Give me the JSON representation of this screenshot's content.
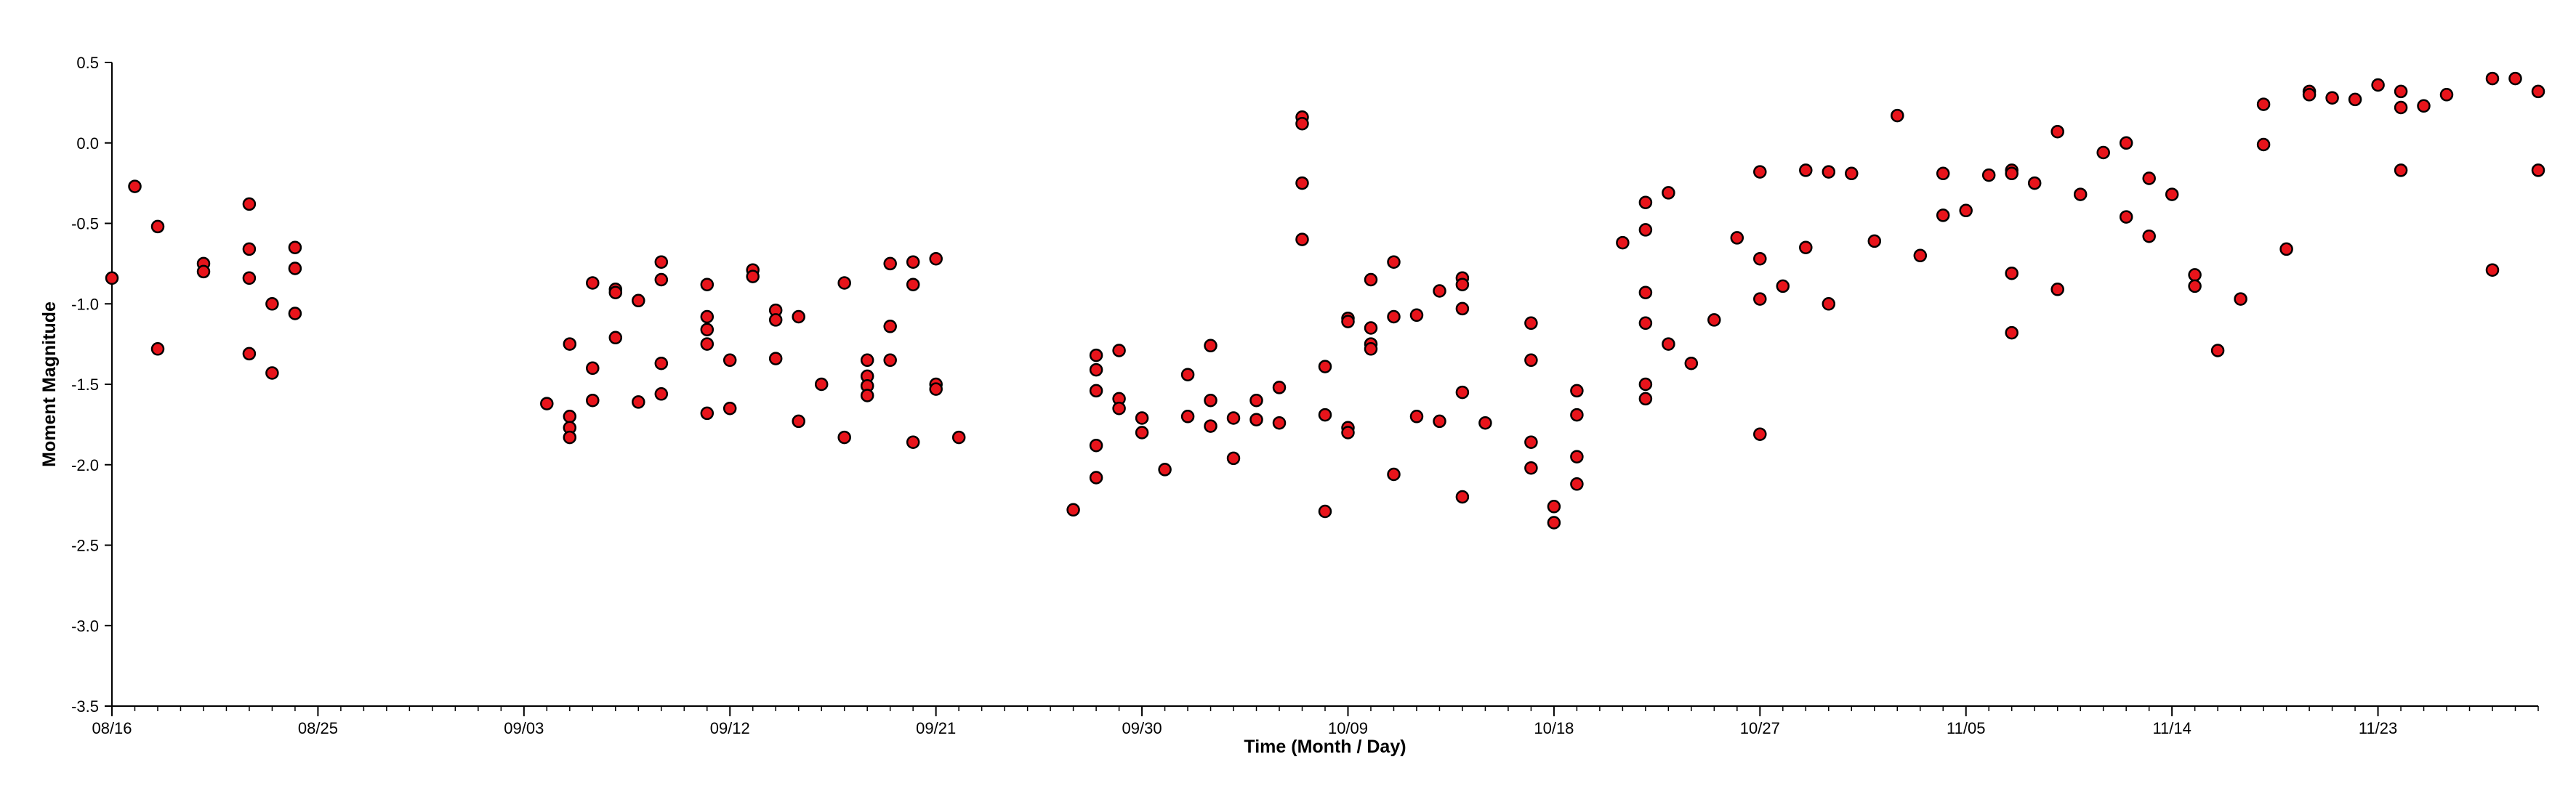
{
  "chart_data": {
    "type": "scatter",
    "title": "",
    "xlabel": "Time (Month / Day)",
    "ylabel": "Moment Magnitude",
    "xlim": [
      "2023-08-16",
      "2023-11-30"
    ],
    "ylim": [
      -3.5,
      0.5
    ],
    "yticks": [
      0.5,
      0.0,
      -0.5,
      -1.0,
      -1.5,
      -2.0,
      -2.5,
      -3.0,
      -3.5
    ],
    "ytick_labels": [
      "0.5",
      "0.0",
      "-0.5",
      "-1.0",
      "-1.5",
      "-2.0",
      "-2.5",
      "-3.0",
      "-3.5"
    ],
    "xticks": [
      "2023-08-16",
      "2023-08-25",
      "2023-09-03",
      "2023-09-12",
      "2023-09-21",
      "2023-09-30",
      "2023-10-09",
      "2023-10-18",
      "2023-10-27",
      "2023-11-05",
      "2023-11-14",
      "2023-11-23"
    ],
    "xtick_labels": [
      "08/16",
      "08/25",
      "09/03",
      "09/12",
      "09/21",
      "09/30",
      "10/09",
      "10/18",
      "10/27",
      "11/05",
      "11/14",
      "11/23"
    ],
    "grid": false,
    "legend": "none",
    "marker_color": "#e8141b",
    "marker_edge_color": "#000000",
    "series": [
      {
        "points": [
          [
            "2023-08-16",
            -0.84
          ],
          [
            "2023-08-17",
            -0.27
          ],
          [
            "2023-08-18",
            -0.52
          ],
          [
            "2023-08-18",
            -1.28
          ],
          [
            "2023-08-20",
            -0.75
          ],
          [
            "2023-08-20",
            -0.8
          ],
          [
            "2023-08-22",
            -0.38
          ],
          [
            "2023-08-22",
            -0.66
          ],
          [
            "2023-08-22",
            -0.84
          ],
          [
            "2023-08-22",
            -1.31
          ],
          [
            "2023-08-23",
            -1.0
          ],
          [
            "2023-08-23",
            -1.43
          ],
          [
            "2023-08-24",
            -0.65
          ],
          [
            "2023-08-24",
            -0.78
          ],
          [
            "2023-08-24",
            -1.06
          ],
          [
            "2023-09-04",
            -1.62
          ],
          [
            "2023-09-05",
            -1.25
          ],
          [
            "2023-09-05",
            -1.7
          ],
          [
            "2023-09-05",
            -1.77
          ],
          [
            "2023-09-05",
            -1.83
          ],
          [
            "2023-09-06",
            -0.87
          ],
          [
            "2023-09-06",
            -1.4
          ],
          [
            "2023-09-06",
            -1.6
          ],
          [
            "2023-09-07",
            -0.91
          ],
          [
            "2023-09-07",
            -0.93
          ],
          [
            "2023-09-07",
            -1.21
          ],
          [
            "2023-09-08",
            -0.98
          ],
          [
            "2023-09-08",
            -1.61
          ],
          [
            "2023-09-09",
            -0.74
          ],
          [
            "2023-09-09",
            -0.85
          ],
          [
            "2023-09-09",
            -1.37
          ],
          [
            "2023-09-09",
            -1.56
          ],
          [
            "2023-09-11",
            -0.88
          ],
          [
            "2023-09-11",
            -1.08
          ],
          [
            "2023-09-11",
            -1.16
          ],
          [
            "2023-09-11",
            -1.25
          ],
          [
            "2023-09-11",
            -1.68
          ],
          [
            "2023-09-12",
            -1.35
          ],
          [
            "2023-09-12",
            -1.65
          ],
          [
            "2023-09-13",
            -0.79
          ],
          [
            "2023-09-13",
            -0.83
          ],
          [
            "2023-09-14",
            -1.04
          ],
          [
            "2023-09-14",
            -1.1
          ],
          [
            "2023-09-14",
            -1.34
          ],
          [
            "2023-09-15",
            -1.08
          ],
          [
            "2023-09-15",
            -1.73
          ],
          [
            "2023-09-16",
            -1.5
          ],
          [
            "2023-09-17",
            -0.87
          ],
          [
            "2023-09-17",
            -1.83
          ],
          [
            "2023-09-18",
            -1.35
          ],
          [
            "2023-09-18",
            -1.45
          ],
          [
            "2023-09-18",
            -1.51
          ],
          [
            "2023-09-18",
            -1.57
          ],
          [
            "2023-09-19",
            -0.75
          ],
          [
            "2023-09-19",
            -1.14
          ],
          [
            "2023-09-19",
            -1.35
          ],
          [
            "2023-09-20",
            -0.74
          ],
          [
            "2023-09-20",
            -0.88
          ],
          [
            "2023-09-20",
            -1.86
          ],
          [
            "2023-09-21",
            -0.72
          ],
          [
            "2023-09-21",
            -1.5
          ],
          [
            "2023-09-21",
            -1.53
          ],
          [
            "2023-09-22",
            -1.83
          ],
          [
            "2023-09-27",
            -2.28
          ],
          [
            "2023-09-28",
            -1.32
          ],
          [
            "2023-09-28",
            -1.41
          ],
          [
            "2023-09-28",
            -1.54
          ],
          [
            "2023-09-28",
            -1.88
          ],
          [
            "2023-09-28",
            -2.08
          ],
          [
            "2023-09-29",
            -1.29
          ],
          [
            "2023-09-29",
            -1.59
          ],
          [
            "2023-09-29",
            -1.65
          ],
          [
            "2023-09-30",
            -1.71
          ],
          [
            "2023-09-30",
            -1.8
          ],
          [
            "2023-10-01",
            -2.03
          ],
          [
            "2023-10-02",
            -1.44
          ],
          [
            "2023-10-02",
            -1.7
          ],
          [
            "2023-10-03",
            -1.26
          ],
          [
            "2023-10-03",
            -1.6
          ],
          [
            "2023-10-03",
            -1.76
          ],
          [
            "2023-10-04",
            -1.71
          ],
          [
            "2023-10-04",
            -1.96
          ],
          [
            "2023-10-05",
            -1.6
          ],
          [
            "2023-10-05",
            -1.72
          ],
          [
            "2023-10-06",
            -1.52
          ],
          [
            "2023-10-06",
            -1.74
          ],
          [
            "2023-10-07",
            0.16
          ],
          [
            "2023-10-07",
            0.12
          ],
          [
            "2023-10-07",
            -0.25
          ],
          [
            "2023-10-07",
            -0.6
          ],
          [
            "2023-10-08",
            -1.39
          ],
          [
            "2023-10-08",
            -1.69
          ],
          [
            "2023-10-08",
            -2.29
          ],
          [
            "2023-10-09",
            -1.09
          ],
          [
            "2023-10-09",
            -1.11
          ],
          [
            "2023-10-09",
            -1.77
          ],
          [
            "2023-10-09",
            -1.8
          ],
          [
            "2023-10-10",
            -0.85
          ],
          [
            "2023-10-10",
            -1.15
          ],
          [
            "2023-10-10",
            -1.25
          ],
          [
            "2023-10-10",
            -1.28
          ],
          [
            "2023-10-11",
            -0.74
          ],
          [
            "2023-10-11",
            -1.08
          ],
          [
            "2023-10-11",
            -2.06
          ],
          [
            "2023-10-12",
            -1.07
          ],
          [
            "2023-10-12",
            -1.7
          ],
          [
            "2023-10-13",
            -0.92
          ],
          [
            "2023-10-13",
            -1.73
          ],
          [
            "2023-10-14",
            -0.84
          ],
          [
            "2023-10-14",
            -0.88
          ],
          [
            "2023-10-14",
            -1.03
          ],
          [
            "2023-10-14",
            -1.55
          ],
          [
            "2023-10-14",
            -2.2
          ],
          [
            "2023-10-15",
            -1.74
          ],
          [
            "2023-10-17",
            -1.12
          ],
          [
            "2023-10-17",
            -1.35
          ],
          [
            "2023-10-17",
            -1.86
          ],
          [
            "2023-10-17",
            -2.02
          ],
          [
            "2023-10-18",
            -2.26
          ],
          [
            "2023-10-18",
            -2.36
          ],
          [
            "2023-10-19",
            -1.54
          ],
          [
            "2023-10-19",
            -1.69
          ],
          [
            "2023-10-19",
            -1.95
          ],
          [
            "2023-10-19",
            -2.12
          ],
          [
            "2023-10-21",
            -0.62
          ],
          [
            "2023-10-22",
            -0.37
          ],
          [
            "2023-10-22",
            -0.54
          ],
          [
            "2023-10-22",
            -0.93
          ],
          [
            "2023-10-22",
            -1.12
          ],
          [
            "2023-10-22",
            -1.5
          ],
          [
            "2023-10-22",
            -1.59
          ],
          [
            "2023-10-23",
            -0.31
          ],
          [
            "2023-10-23",
            -1.25
          ],
          [
            "2023-10-24",
            -1.37
          ],
          [
            "2023-10-25",
            -1.1
          ],
          [
            "2023-10-26",
            -0.59
          ],
          [
            "2023-10-27",
            -0.18
          ],
          [
            "2023-10-27",
            -0.72
          ],
          [
            "2023-10-27",
            -0.97
          ],
          [
            "2023-10-27",
            -1.81
          ],
          [
            "2023-10-28",
            -0.89
          ],
          [
            "2023-10-29",
            -0.17
          ],
          [
            "2023-10-29",
            -0.65
          ],
          [
            "2023-10-30",
            -0.18
          ],
          [
            "2023-10-30",
            -1.0
          ],
          [
            "2023-10-31",
            -0.19
          ],
          [
            "2023-11-01",
            -0.61
          ],
          [
            "2023-11-02",
            0.17
          ],
          [
            "2023-11-03",
            -0.7
          ],
          [
            "2023-11-04",
            -0.19
          ],
          [
            "2023-11-04",
            -0.45
          ],
          [
            "2023-11-05",
            -0.42
          ],
          [
            "2023-11-06",
            -0.2
          ],
          [
            "2023-11-07",
            -0.17
          ],
          [
            "2023-11-07",
            -0.19
          ],
          [
            "2023-11-07",
            -0.81
          ],
          [
            "2023-11-07",
            -1.18
          ],
          [
            "2023-11-08",
            -0.25
          ],
          [
            "2023-11-09",
            0.07
          ],
          [
            "2023-11-09",
            -0.91
          ],
          [
            "2023-11-10",
            -0.32
          ],
          [
            "2023-11-11",
            -0.06
          ],
          [
            "2023-11-12",
            0.0
          ],
          [
            "2023-11-12",
            -0.46
          ],
          [
            "2023-11-13",
            -0.22
          ],
          [
            "2023-11-13",
            -0.58
          ],
          [
            "2023-11-14",
            -0.32
          ],
          [
            "2023-11-15",
            -0.82
          ],
          [
            "2023-11-15",
            -0.89
          ],
          [
            "2023-11-16",
            -1.29
          ],
          [
            "2023-11-17",
            -0.97
          ],
          [
            "2023-11-18",
            0.24
          ],
          [
            "2023-11-18",
            -0.01
          ],
          [
            "2023-11-19",
            -0.66
          ],
          [
            "2023-11-20",
            0.32
          ],
          [
            "2023-11-20",
            0.3
          ],
          [
            "2023-11-21",
            0.28
          ],
          [
            "2023-11-22",
            0.27
          ],
          [
            "2023-11-23",
            0.36
          ],
          [
            "2023-11-24",
            0.32
          ],
          [
            "2023-11-24",
            0.22
          ],
          [
            "2023-11-24",
            -0.17
          ],
          [
            "2023-11-25",
            0.23
          ],
          [
            "2023-11-26",
            0.3
          ],
          [
            "2023-11-28",
            0.4
          ],
          [
            "2023-11-28",
            -0.79
          ],
          [
            "2023-11-29",
            0.4
          ],
          [
            "2023-11-30",
            0.32
          ],
          [
            "2023-11-30",
            -0.17
          ]
        ]
      }
    ]
  }
}
